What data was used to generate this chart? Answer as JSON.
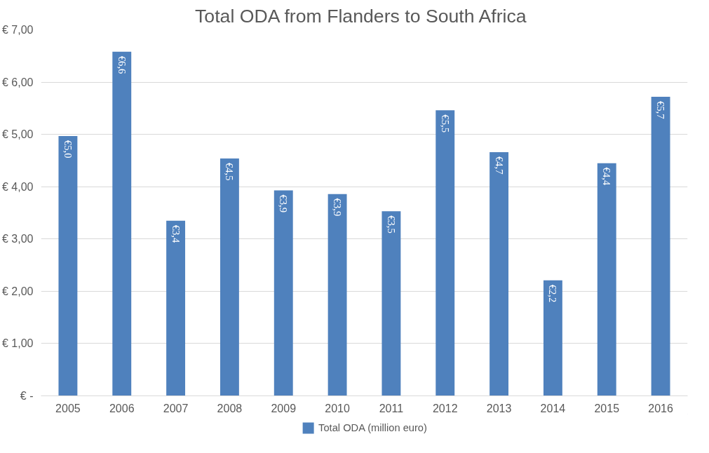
{
  "chart_data": {
    "type": "bar",
    "title": "Total ODA from  Flanders to South Africa",
    "categories": [
      "2005",
      "2006",
      "2007",
      "2008",
      "2009",
      "2010",
      "2011",
      "2012",
      "2013",
      "2014",
      "2015",
      "2016"
    ],
    "series": [
      {
        "name": "Total ODA (million euro)",
        "color": "#4f81bd",
        "values": [
          4.97,
          6.58,
          3.35,
          4.54,
          3.93,
          3.86,
          3.53,
          5.46,
          4.66,
          2.21,
          4.45,
          5.72
        ]
      }
    ],
    "value_labels": [
      "€5,0",
      "€6,6",
      "€3,4",
      "€4,5",
      "€3,9",
      "€3,9",
      "€3,5",
      "€5,5",
      "€4,7",
      "€2,2",
      "€4,4",
      "€5,7"
    ],
    "ylim": [
      0,
      7
    ],
    "yticks": [
      {
        "value": 0,
        "label": "€ -"
      },
      {
        "value": 1,
        "label": "€ 1,00"
      },
      {
        "value": 2,
        "label": "€ 2,00"
      },
      {
        "value": 3,
        "label": "€ 3,00"
      },
      {
        "value": 4,
        "label": "€ 4,00"
      },
      {
        "value": 5,
        "label": "€ 5,00"
      },
      {
        "value": 6,
        "label": "€ 6,00"
      },
      {
        "value": 7,
        "label": "€ 7,00"
      }
    ],
    "grid": "y",
    "legend": "bottom"
  }
}
